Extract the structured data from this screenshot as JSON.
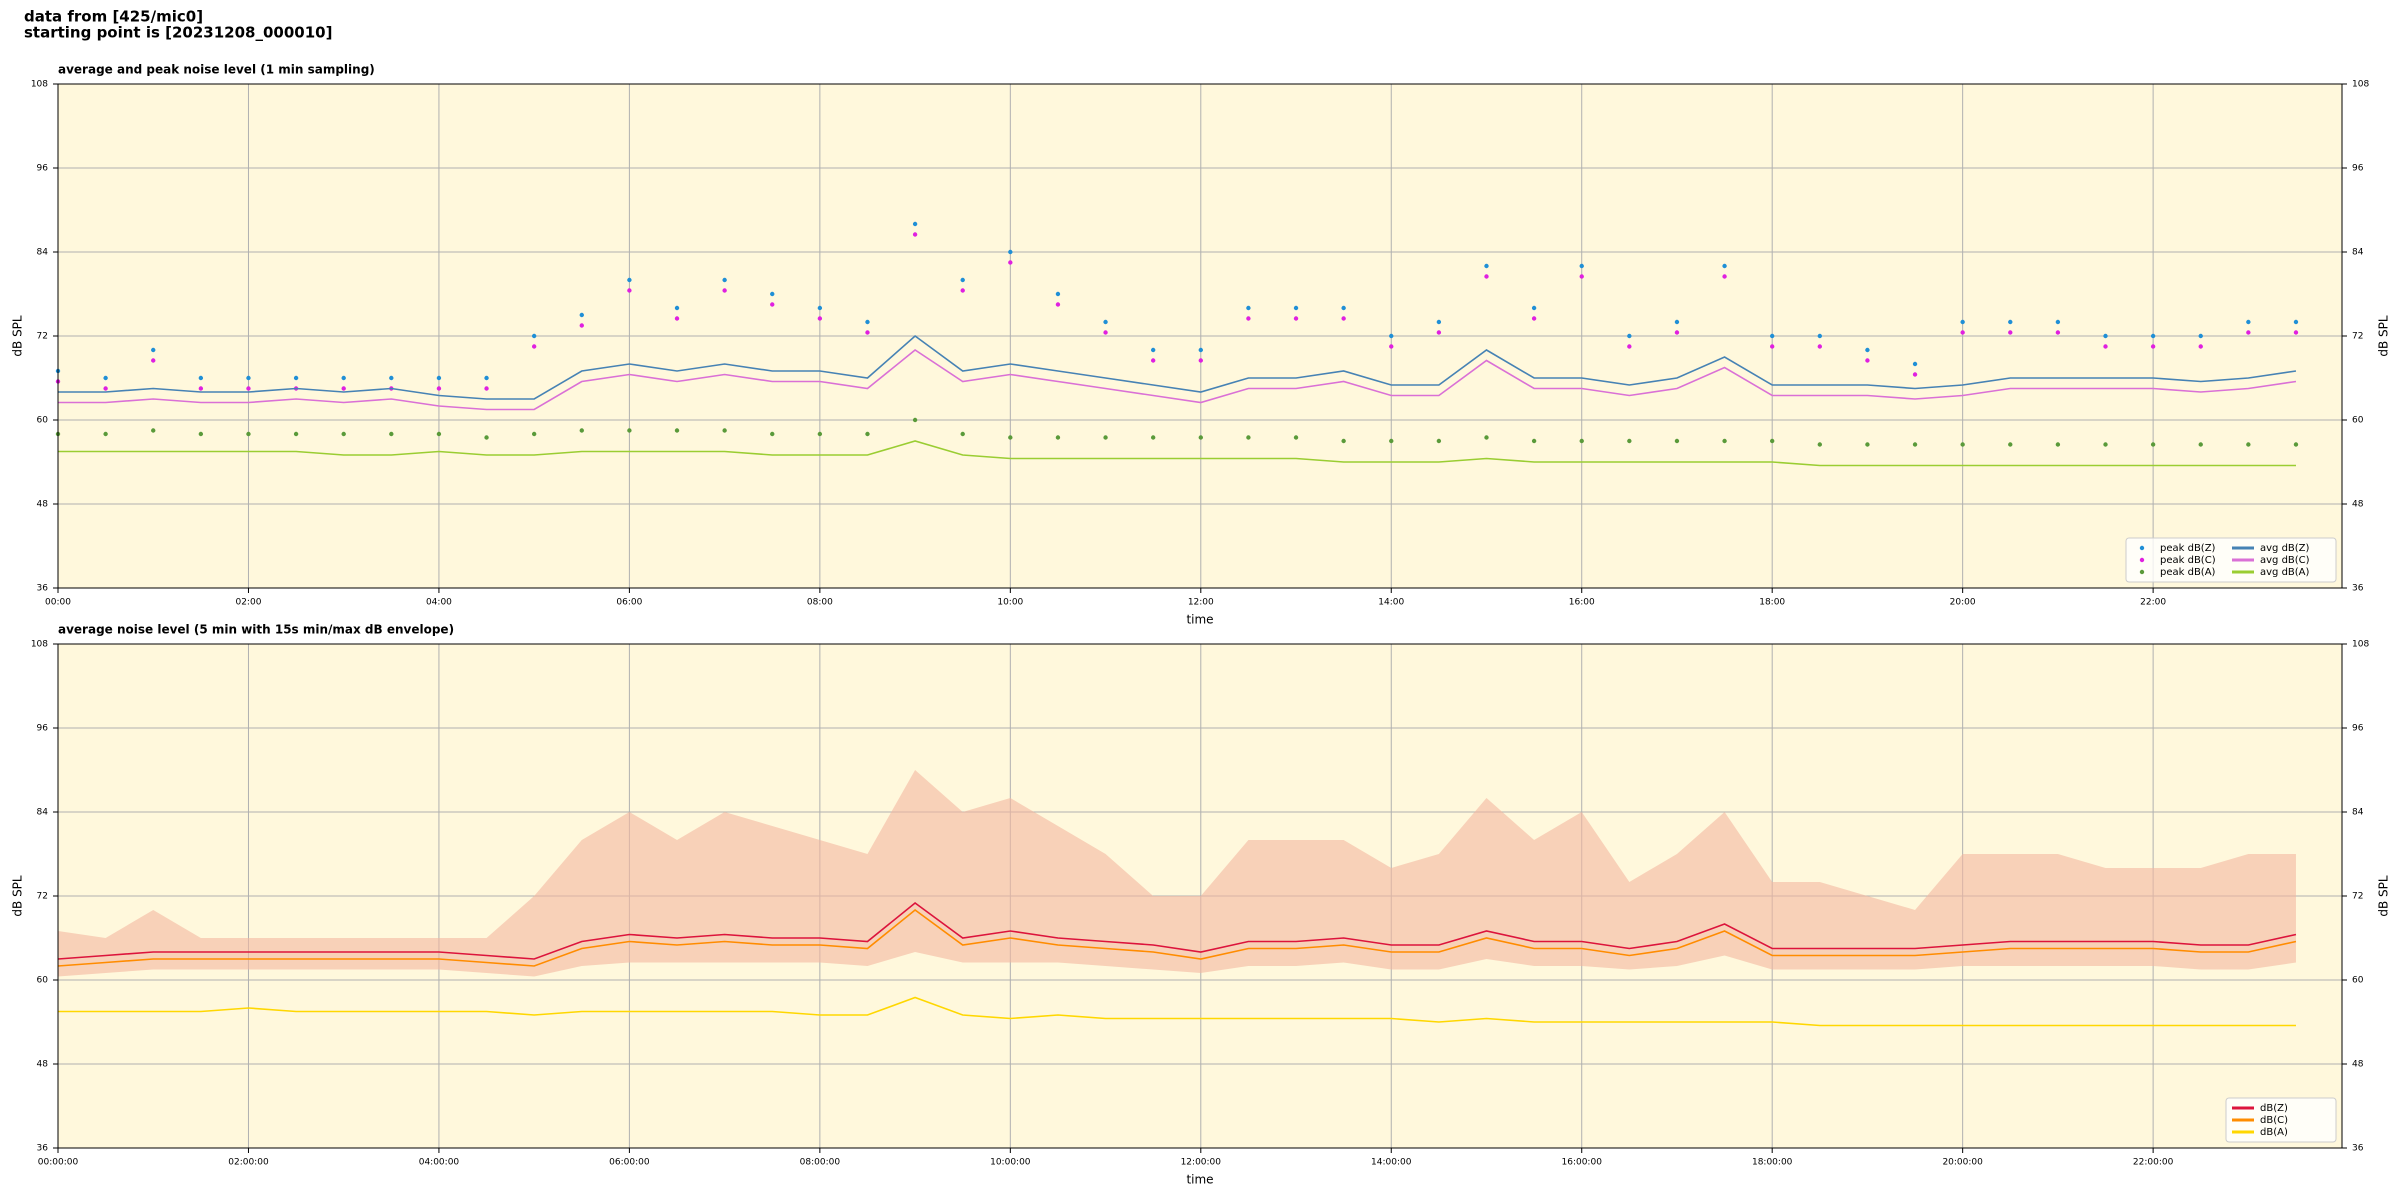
{
  "header": [
    "data from [425/mic0]",
    "starting point is [20231208_000010]"
  ],
  "chart_data": [
    {
      "type": "line",
      "title": "average and peak noise level (1 min sampling)",
      "xlabel": "time",
      "ylabel": "dB SPL",
      "x": [
        "00:00",
        "00:30",
        "01:00",
        "01:30",
        "02:00",
        "02:30",
        "03:00",
        "03:30",
        "04:00",
        "04:30",
        "05:00",
        "05:30",
        "06:00",
        "06:30",
        "07:00",
        "07:30",
        "08:00",
        "08:30",
        "09:00",
        "09:30",
        "10:00",
        "10:30",
        "11:00",
        "11:30",
        "12:00",
        "12:30",
        "13:00",
        "13:30",
        "14:00",
        "14:30",
        "15:00",
        "15:30",
        "16:00",
        "16:30",
        "17:00",
        "17:30",
        "18:00",
        "18:30",
        "19:00",
        "19:30",
        "20:00",
        "20:30",
        "21:00",
        "21:30",
        "22:00",
        "22:30",
        "23:00",
        "23:30"
      ],
      "xlim": [
        "00:00",
        "23:59"
      ],
      "xticks": [
        "00:00",
        "02:00",
        "04:00",
        "06:00",
        "08:00",
        "10:00",
        "12:00",
        "14:00",
        "16:00",
        "18:00",
        "20:00",
        "22:00"
      ],
      "ylim": [
        36,
        108
      ],
      "yticks": [
        36,
        48,
        60,
        72,
        84,
        96,
        108
      ],
      "grid": true,
      "legend": "lower right",
      "legend_columns": 2,
      "background": "#fff8dc",
      "series": [
        {
          "name": "peak dB(Z)",
          "mark": "dot",
          "color": "#1f8fd6",
          "values": [
            67,
            66,
            70,
            66,
            66,
            66,
            66,
            66,
            66,
            66,
            72,
            75,
            80,
            76,
            80,
            78,
            76,
            74,
            88,
            80,
            84,
            78,
            74,
            70,
            70,
            76,
            76,
            76,
            72,
            74,
            82,
            76,
            82,
            72,
            74,
            82,
            72,
            72,
            70,
            68,
            74,
            74,
            74,
            72,
            72,
            72,
            74,
            74
          ]
        },
        {
          "name": "peak dB(C)",
          "mark": "dot",
          "color": "#e020e0",
          "values": [
            65.5,
            64.5,
            68.5,
            64.5,
            64.5,
            64.5,
            64.5,
            64.5,
            64.5,
            64.5,
            70.5,
            73.5,
            78.5,
            74.5,
            78.5,
            76.5,
            74.5,
            72.5,
            86.5,
            78.5,
            82.5,
            76.5,
            72.5,
            68.5,
            68.5,
            74.5,
            74.5,
            74.5,
            70.5,
            72.5,
            80.5,
            74.5,
            80.5,
            70.5,
            72.5,
            80.5,
            70.5,
            70.5,
            68.5,
            66.5,
            72.5,
            72.5,
            72.5,
            70.5,
            70.5,
            70.5,
            72.5,
            72.5
          ]
        },
        {
          "name": "peak dB(A)",
          "mark": "dot",
          "color": "#5a9a3a",
          "values": [
            58,
            58,
            58.5,
            58,
            58,
            58,
            58,
            58,
            58,
            57.5,
            58,
            58.5,
            58.5,
            58.5,
            58.5,
            58,
            58,
            58,
            60,
            58,
            57.5,
            57.5,
            57.5,
            57.5,
            57.5,
            57.5,
            57.5,
            57,
            57,
            57,
            57.5,
            57,
            57,
            57,
            57,
            57,
            57,
            56.5,
            56.5,
            56.5,
            56.5,
            56.5,
            56.5,
            56.5,
            56.5,
            56.5,
            56.5,
            56.5
          ]
        },
        {
          "name": "avg dB(Z)",
          "mark": "line",
          "color": "#4682b4",
          "values": [
            64,
            64,
            64.5,
            64,
            64,
            64.5,
            64,
            64.5,
            63.5,
            63,
            63,
            67,
            68,
            67,
            68,
            67,
            67,
            66,
            72,
            67,
            68,
            67,
            66,
            65,
            64,
            66,
            66,
            67,
            65,
            65,
            70,
            66,
            66,
            65,
            66,
            69,
            65,
            65,
            65,
            64.5,
            65,
            66,
            66,
            66,
            66,
            65.5,
            66,
            67
          ]
        },
        {
          "name": "avg dB(C)",
          "mark": "line",
          "color": "#da70d6",
          "values": [
            62.5,
            62.5,
            63,
            62.5,
            62.5,
            63,
            62.5,
            63,
            62,
            61.5,
            61.5,
            65.5,
            66.5,
            65.5,
            66.5,
            65.5,
            65.5,
            64.5,
            70,
            65.5,
            66.5,
            65.5,
            64.5,
            63.5,
            62.5,
            64.5,
            64.5,
            65.5,
            63.5,
            63.5,
            68.5,
            64.5,
            64.5,
            63.5,
            64.5,
            67.5,
            63.5,
            63.5,
            63.5,
            63,
            63.5,
            64.5,
            64.5,
            64.5,
            64.5,
            64,
            64.5,
            65.5
          ]
        },
        {
          "name": "avg dB(A)",
          "mark": "line",
          "color": "#9acd32",
          "values": [
            55.5,
            55.5,
            55.5,
            55.5,
            55.5,
            55.5,
            55,
            55,
            55.5,
            55,
            55,
            55.5,
            55.5,
            55.5,
            55.5,
            55,
            55,
            55,
            57,
            55,
            54.5,
            54.5,
            54.5,
            54.5,
            54.5,
            54.5,
            54.5,
            54,
            54,
            54,
            54.5,
            54,
            54,
            54,
            54,
            54,
            54,
            53.5,
            53.5,
            53.5,
            53.5,
            53.5,
            53.5,
            53.5,
            53.5,
            53.5,
            53.5,
            53.5
          ]
        }
      ]
    },
    {
      "type": "line",
      "title": "average noise level (5 min with 15s min/max dB envelope)",
      "xlabel": "time",
      "ylabel": "dB SPL",
      "x": [
        "00:00:00",
        "00:30:00",
        "01:00:00",
        "01:30:00",
        "02:00:00",
        "02:30:00",
        "03:00:00",
        "03:30:00",
        "04:00:00",
        "04:30:00",
        "05:00:00",
        "05:30:00",
        "06:00:00",
        "06:30:00",
        "07:00:00",
        "07:30:00",
        "08:00:00",
        "08:30:00",
        "09:00:00",
        "09:30:00",
        "10:00:00",
        "10:30:00",
        "11:00:00",
        "11:30:00",
        "12:00:00",
        "12:30:00",
        "13:00:00",
        "13:30:00",
        "14:00:00",
        "14:30:00",
        "15:00:00",
        "15:30:00",
        "16:00:00",
        "16:30:00",
        "17:00:00",
        "17:30:00",
        "18:00:00",
        "18:30:00",
        "19:00:00",
        "19:30:00",
        "20:00:00",
        "20:30:00",
        "21:00:00",
        "21:30:00",
        "22:00:00",
        "22:30:00",
        "23:00:00",
        "23:30:00"
      ],
      "xlim": [
        "00:00:00",
        "23:59:00"
      ],
      "xticks": [
        "00:00:00",
        "02:00:00",
        "04:00:00",
        "06:00:00",
        "08:00:00",
        "10:00:00",
        "12:00:00",
        "14:00:00",
        "16:00:00",
        "18:00:00",
        "20:00:00",
        "22:00:00"
      ],
      "ylim": [
        36,
        108
      ],
      "yticks": [
        36,
        48,
        60,
        72,
        84,
        96,
        108
      ],
      "grid": true,
      "legend": "lower right",
      "legend_columns": 1,
      "background": "#fff8dc",
      "envelope": {
        "color": "#f4b8a0",
        "high": [
          67,
          66,
          70,
          66,
          66,
          66,
          66,
          66,
          66,
          66,
          72,
          80,
          84,
          80,
          84,
          82,
          80,
          78,
          90,
          84,
          86,
          82,
          78,
          72,
          72,
          80,
          80,
          80,
          76,
          78,
          86,
          80,
          84,
          74,
          78,
          84,
          74,
          74,
          72,
          70,
          78,
          78,
          78,
          76,
          76,
          76,
          78,
          78
        ],
        "low": [
          60.5,
          61,
          61.5,
          61.5,
          61.5,
          61.5,
          61.5,
          61.5,
          61.5,
          61,
          60.5,
          62,
          62.5,
          62.5,
          62.5,
          62.5,
          62.5,
          62,
          64,
          62.5,
          62.5,
          62.5,
          62,
          61.5,
          61,
          62,
          62,
          62.5,
          61.5,
          61.5,
          63,
          62,
          62,
          61.5,
          62,
          63.5,
          61.5,
          61.5,
          61.5,
          61.5,
          62,
          62,
          62,
          62,
          62,
          61.5,
          61.5,
          62.5
        ]
      },
      "series": [
        {
          "name": "dB(Z)",
          "mark": "line",
          "color": "#dc143c",
          "values": [
            63,
            63.5,
            64,
            64,
            64,
            64,
            64,
            64,
            64,
            63.5,
            63,
            65.5,
            66.5,
            66,
            66.5,
            66,
            66,
            65.5,
            71,
            66,
            67,
            66,
            65.5,
            65,
            64,
            65.5,
            65.5,
            66,
            65,
            65,
            67,
            65.5,
            65.5,
            64.5,
            65.5,
            68,
            64.5,
            64.5,
            64.5,
            64.5,
            65,
            65.5,
            65.5,
            65.5,
            65.5,
            65,
            65,
            66.5
          ]
        },
        {
          "name": "dB(C)",
          "mark": "line",
          "color": "#ff8c00",
          "values": [
            62,
            62.5,
            63,
            63,
            63,
            63,
            63,
            63,
            63,
            62.5,
            62,
            64.5,
            65.5,
            65,
            65.5,
            65,
            65,
            64.5,
            70,
            65,
            66,
            65,
            64.5,
            64,
            63,
            64.5,
            64.5,
            65,
            64,
            64,
            66,
            64.5,
            64.5,
            63.5,
            64.5,
            67,
            63.5,
            63.5,
            63.5,
            63.5,
            64,
            64.5,
            64.5,
            64.5,
            64.5,
            64,
            64,
            65.5
          ]
        },
        {
          "name": "dB(A)",
          "mark": "line",
          "color": "#ffd700",
          "values": [
            55.5,
            55.5,
            55.5,
            55.5,
            56,
            55.5,
            55.5,
            55.5,
            55.5,
            55.5,
            55,
            55.5,
            55.5,
            55.5,
            55.5,
            55.5,
            55,
            55,
            57.5,
            55,
            54.5,
            55,
            54.5,
            54.5,
            54.5,
            54.5,
            54.5,
            54.5,
            54.5,
            54,
            54.5,
            54,
            54,
            54,
            54,
            54,
            54,
            53.5,
            53.5,
            53.5,
            53.5,
            53.5,
            53.5,
            53.5,
            53.5,
            53.5,
            53.5,
            53.5
          ]
        }
      ]
    }
  ]
}
